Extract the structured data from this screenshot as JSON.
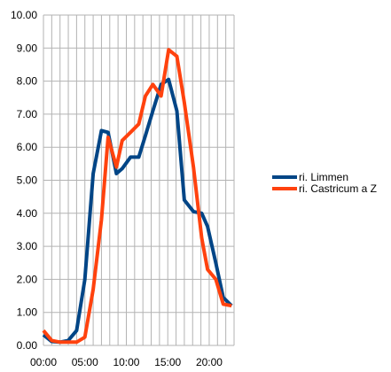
{
  "chart_data": {
    "type": "line",
    "title": "",
    "xlabel": "",
    "ylabel": "",
    "ylim": [
      0,
      10
    ],
    "yticks": [
      "0.00",
      "1.00",
      "2.00",
      "3.00",
      "4.00",
      "5.00",
      "6.00",
      "7.00",
      "8.00",
      "9.00",
      "10.00"
    ],
    "xticks": [
      {
        "x": 0,
        "label": "00:00"
      },
      {
        "x": 5,
        "label": "05:00"
      },
      {
        "x": 10,
        "label": "10:00"
      },
      {
        "x": 15,
        "label": "15:00"
      },
      {
        "x": 20,
        "label": "20:00"
      }
    ],
    "xlim": [
      0,
      23
    ],
    "grid": true,
    "legend_position": "right",
    "series": [
      {
        "name": "ri. Limmen",
        "color": "#004586",
        "x": [
          0,
          1,
          2,
          3,
          4,
          5,
          6,
          7,
          7.8,
          8.8,
          9.5,
          10.5,
          11.5,
          12.3,
          13.2,
          14.2,
          15.1,
          16.1,
          17,
          18.1,
          19.1,
          19.8,
          20.8,
          21.7,
          22.7
        ],
        "values": [
          0.32,
          0.12,
          0.1,
          0.15,
          0.45,
          2.0,
          5.2,
          6.5,
          6.45,
          5.2,
          5.35,
          5.7,
          5.7,
          6.35,
          7.1,
          7.9,
          8.05,
          7.1,
          4.4,
          4.05,
          4.0,
          3.6,
          2.5,
          1.45,
          1.2
        ]
      },
      {
        "name": "ri. Castricum a Z",
        "color": "#ff420e",
        "x": [
          0,
          1,
          2,
          3,
          4,
          5,
          6,
          7,
          7.8,
          8.8,
          9.5,
          10.5,
          11.5,
          12.3,
          13.2,
          14.2,
          15.1,
          16.1,
          17,
          18.1,
          19.1,
          19.8,
          20.8,
          21.7,
          22.7
        ],
        "values": [
          0.45,
          0.15,
          0.1,
          0.1,
          0.1,
          0.25,
          1.7,
          3.8,
          6.3,
          5.4,
          6.2,
          6.45,
          6.7,
          7.55,
          7.9,
          7.55,
          8.95,
          8.75,
          7.35,
          5.4,
          3.25,
          2.3,
          2.0,
          1.25,
          1.2
        ]
      }
    ]
  }
}
